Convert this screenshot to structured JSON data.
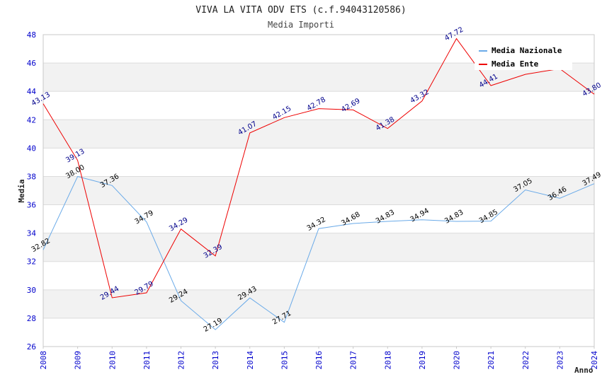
{
  "chart_data": {
    "type": "line",
    "title": "VIVA LA VITA ODV ETS (c.f.94043120586)",
    "subtitle": "Media Importi",
    "xlabel": "Anno",
    "ylabel": "Media",
    "x": [
      "2008",
      "2009",
      "2010",
      "2011",
      "2012",
      "2013",
      "2014",
      "2015",
      "2016",
      "2017",
      "2018",
      "2019",
      "2020",
      "2021",
      "2022",
      "2023",
      "2024"
    ],
    "yticks": [
      "26",
      "28",
      "30",
      "32",
      "34",
      "36",
      "38",
      "40",
      "42",
      "44",
      "46",
      "48"
    ],
    "ylim": [
      26,
      48
    ],
    "grid": true,
    "legend_position": "top-right",
    "series": [
      {
        "name": "Media Nazionale",
        "color": "#6aaae8",
        "label_color": "#000000",
        "values": [
          32.82,
          38.0,
          37.36,
          34.79,
          29.24,
          27.19,
          29.43,
          27.71,
          34.32,
          34.68,
          34.83,
          34.94,
          34.83,
          34.85,
          37.05,
          36.46,
          37.49
        ],
        "labels": [
          "32.82",
          "38.00",
          "37.36",
          "34.79",
          "29.24",
          "27.19",
          "29.43",
          "27.71",
          "34.32",
          "34.68",
          "34.83",
          "34.94",
          "34.83",
          "34.85",
          "37.05",
          "36.46",
          "37.49"
        ]
      },
      {
        "name": "Media Ente",
        "color": "#ee0000",
        "label_color": "#00008b",
        "values": [
          43.13,
          39.13,
          29.44,
          29.79,
          34.29,
          32.39,
          41.07,
          42.15,
          42.78,
          42.69,
          41.38,
          43.32,
          47.72,
          44.41,
          45.2,
          45.6,
          43.8
        ],
        "labels": [
          "43.13",
          "39.13",
          "29.44",
          "29.79",
          "34.29",
          "32.39",
          "41.07",
          "42.15",
          "42.78",
          "42.69",
          "41.38",
          "43.32",
          "47.72",
          "44.41",
          "",
          "",
          "43.80"
        ]
      }
    ]
  }
}
